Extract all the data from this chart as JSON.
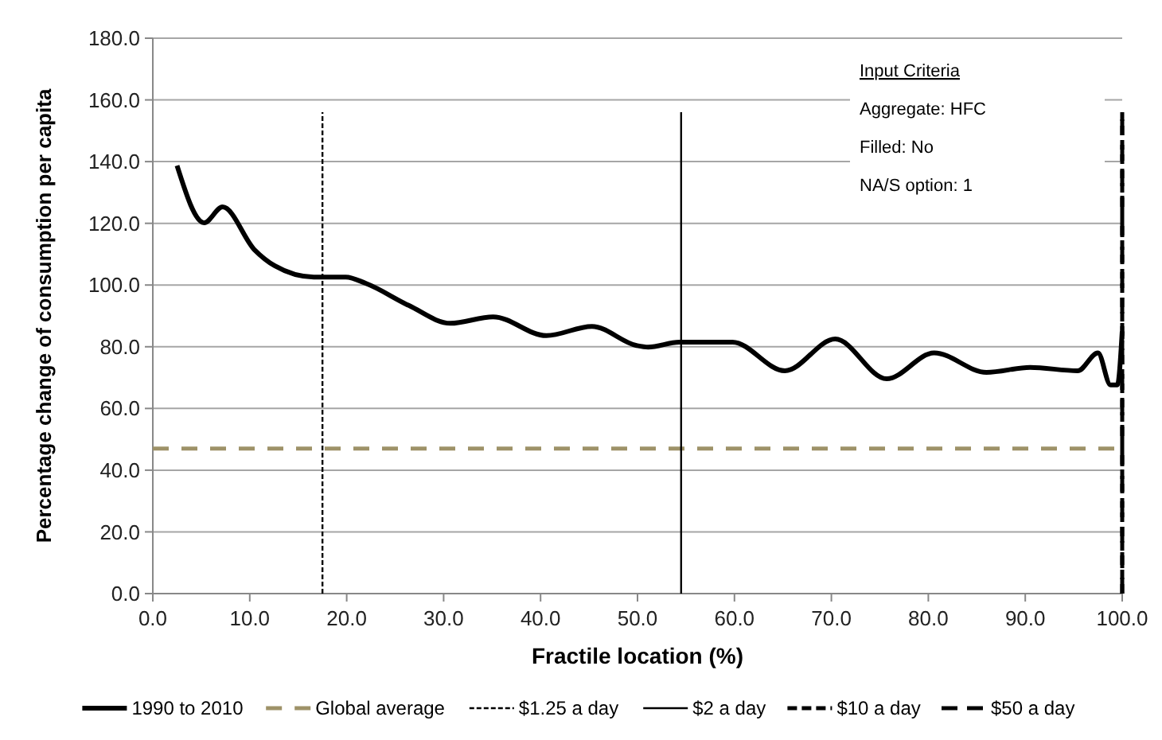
{
  "chart_data": {
    "type": "line",
    "xlabel": "Fractile location (%)",
    "ylabel": "Percentage change of consumption per capita",
    "xlim": [
      0,
      100
    ],
    "ylim": [
      0,
      180
    ],
    "xticks": [
      {
        "value": 0,
        "label": "0.0"
      },
      {
        "value": 10,
        "label": "10.0"
      },
      {
        "value": 20,
        "label": "20.0"
      },
      {
        "value": 30,
        "label": "30.0"
      },
      {
        "value": 40,
        "label": "40.0"
      },
      {
        "value": 50,
        "label": "50.0"
      },
      {
        "value": 60,
        "label": "60.0"
      },
      {
        "value": 70,
        "label": "70.0"
      },
      {
        "value": 80,
        "label": "80.0"
      },
      {
        "value": 90,
        "label": "90.0"
      },
      {
        "value": 100,
        "label": "100.0"
      }
    ],
    "yticks": [
      {
        "value": 0,
        "label": "0.0"
      },
      {
        "value": 20,
        "label": "20.0"
      },
      {
        "value": 40,
        "label": "40.0"
      },
      {
        "value": 60,
        "label": "60.0"
      },
      {
        "value": 80,
        "label": "80.0"
      },
      {
        "value": 100,
        "label": "100.0"
      },
      {
        "value": 120,
        "label": "120.0"
      },
      {
        "value": 140,
        "label": "140.0"
      },
      {
        "value": 160,
        "label": "160.0"
      },
      {
        "value": 180,
        "label": "180.0"
      }
    ],
    "grid": "y",
    "legend": "bottom",
    "annotations": [
      "Input Criteria",
      "Aggregate: HFC",
      "Filled: No",
      "NA/S option: 1"
    ],
    "series": [
      {
        "name": "1990 to 2010",
        "color": "#000000",
        "line_style": "solid",
        "x": [
          2.5,
          5.3,
          7.2,
          10.5,
          12.6,
          16.6,
          19.9,
          22,
          26.4,
          30.7,
          35.1,
          40.6,
          45.3,
          49.9,
          51.1,
          54.3,
          59.8,
          65.2,
          70.4,
          75.7,
          80.6,
          86,
          90.5,
          95.4,
          97.5,
          98.8,
          99.5,
          100
        ],
        "values": [
          138.7,
          120.2,
          125.3,
          111.4,
          106.2,
          102.6,
          102.6,
          100.5,
          93.4,
          87.6,
          89.7,
          83.6,
          86.6,
          80.4,
          79.9,
          81.5,
          81.5,
          72.2,
          82.5,
          69.6,
          78,
          71.7,
          73.3,
          72.2,
          78,
          67.6,
          67.6,
          85
        ]
      },
      {
        "name": "Global average",
        "color": "#9e9268",
        "line_style": "dashed",
        "x": [
          0,
          100
        ],
        "values": [
          47,
          47
        ]
      },
      {
        "name": "$1.25 a day",
        "color": "#000000",
        "line_style": "dotted",
        "x": [
          17.5,
          17.5
        ],
        "values": [
          0,
          156
        ]
      },
      {
        "name": "$2 a day",
        "color": "#000000",
        "line_style": "solid",
        "x": [
          54.5,
          54.5
        ],
        "values": [
          0,
          156
        ]
      },
      {
        "name": "$10 a day",
        "color": "#000000",
        "line_style": "dashed",
        "x": [
          100,
          100
        ],
        "values": [
          0,
          156
        ]
      },
      {
        "name": "$50 a day",
        "color": "#000000",
        "line_style": "dashed",
        "x": [
          100,
          100
        ],
        "values": [
          0,
          156
        ]
      }
    ]
  }
}
